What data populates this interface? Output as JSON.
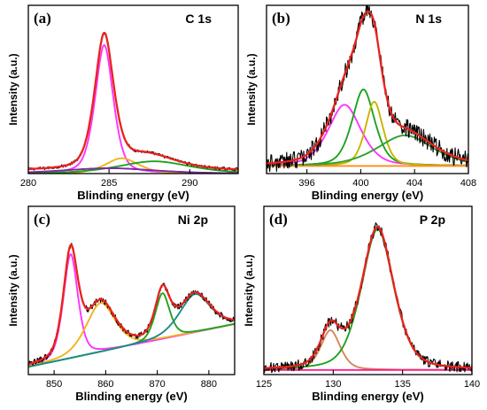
{
  "chart_data": [
    {
      "type": "line",
      "panel": "(a)",
      "title": "C 1s",
      "xlabel": "Blinding energy (eV)",
      "ylabel": "Intensity (a.u.)",
      "xlim": [
        280,
        293
      ],
      "ylim": [
        0,
        1.1
      ],
      "xticks": [
        280,
        285,
        290
      ],
      "series": [
        {
          "color": "#000000",
          "kind": "raw",
          "peaks": [
            [
              284.7,
              0.86,
              0.62
            ],
            [
              287.3,
              0.1,
              2.0
            ]
          ],
          "baseline": [
            0.02,
            0.02
          ],
          "noise": 0.01
        },
        {
          "color": "#e8231c",
          "kind": "fit",
          "peaks": [
            [
              284.7,
              0.86,
              0.62
            ],
            [
              287.3,
              0.1,
              2.0
            ]
          ],
          "baseline": [
            0.02,
            0.02
          ]
        },
        {
          "color": "#ff33ff",
          "kind": "component",
          "peaks": [
            [
              284.7,
              0.84,
              0.6
            ]
          ],
          "baseline": [
            0,
            0
          ]
        },
        {
          "color": "#f0b41e",
          "kind": "component",
          "peaks": [
            [
              285.8,
              0.1,
              1.1
            ]
          ],
          "baseline": [
            0,
            0
          ]
        },
        {
          "color": "#1fa21f",
          "kind": "component",
          "peaks": [
            [
              287.8,
              0.08,
              2.4
            ]
          ],
          "baseline": [
            0,
            0
          ]
        },
        {
          "color": "#7a2ba0",
          "kind": "component",
          "peaks": [
            [
              285.0,
              0.035,
              3.0
            ]
          ],
          "baseline": [
            0,
            0
          ]
        }
      ]
    },
    {
      "type": "line",
      "panel": "(b)",
      "title": "N 1s",
      "xlabel": "Blinding energy (eV)",
      "ylabel": "Intensity (a.u.)",
      "xlim": [
        393,
        408
      ],
      "ylim": [
        0,
        1.1
      ],
      "xticks": [
        396,
        400,
        404,
        408
      ],
      "series": [
        {
          "color": "#000000",
          "kind": "raw",
          "peaks": [
            [
              398.8,
              0.4,
              1.3
            ],
            [
              400.2,
              0.5,
              0.9
            ],
            [
              401.0,
              0.42,
              0.7
            ],
            [
              403.3,
              0.2,
              2.2
            ]
          ],
          "baseline": [
            0.05,
            0.05
          ],
          "noise": 0.06
        },
        {
          "color": "#e8231c",
          "kind": "fit",
          "peaks": [
            [
              398.8,
              0.4,
              1.3
            ],
            [
              400.2,
              0.5,
              0.9
            ],
            [
              401.0,
              0.42,
              0.7
            ],
            [
              403.3,
              0.2,
              2.2
            ]
          ],
          "baseline": [
            0.05,
            0.05
          ]
        },
        {
          "color": "#ff33ff",
          "kind": "component",
          "peaks": [
            [
              398.8,
              0.4,
              1.3
            ]
          ],
          "baseline": [
            0.05,
            0.05
          ]
        },
        {
          "color": "#1fa21f",
          "kind": "component",
          "peaks": [
            [
              400.2,
              0.5,
              0.9
            ]
          ],
          "baseline": [
            0.05,
            0.05
          ]
        },
        {
          "color": "#c8b400",
          "kind": "component",
          "peaks": [
            [
              401.0,
              0.42,
              0.7
            ]
          ],
          "baseline": [
            0.05,
            0.05
          ]
        },
        {
          "color": "#2ea02e",
          "kind": "component",
          "peaks": [
            [
              403.3,
              0.2,
              2.2
            ]
          ],
          "baseline": [
            0.05,
            0.05
          ]
        },
        {
          "color": "#ff8c1a",
          "kind": "component",
          "peaks": [],
          "baseline": [
            0.05,
            0.05
          ]
        }
      ]
    },
    {
      "type": "line",
      "panel": "(c)",
      "title": "Ni 2p",
      "xlabel": "Blinding energy (eV)",
      "ylabel": "Intensity (a.u.)",
      "xlim": [
        845,
        885
      ],
      "ylim": [
        0,
        1.1
      ],
      "xticks": [
        850,
        860,
        870,
        880
      ],
      "series": [
        {
          "color": "#000000",
          "kind": "raw",
          "peaks": [
            [
              853.2,
              0.68,
              1.5
            ],
            [
              859.0,
              0.32,
              3.0
            ],
            [
              871.0,
              0.3,
              1.5
            ],
            [
              877.3,
              0.25,
              3.2
            ]
          ],
          "baseline": [
            0.05,
            0.33
          ],
          "noise": 0.02
        },
        {
          "color": "#e8231c",
          "kind": "fit",
          "peaks": [
            [
              853.2,
              0.68,
              1.5
            ],
            [
              859.0,
              0.32,
              3.0
            ],
            [
              871.0,
              0.3,
              1.5
            ],
            [
              877.3,
              0.25,
              3.2
            ]
          ],
          "baseline": [
            0.05,
            0.33
          ]
        },
        {
          "color": "#ff33ff",
          "kind": "component",
          "peaks": [
            [
              853.2,
              0.68,
              1.5
            ]
          ],
          "baseline": [
            0.05,
            0.33
          ]
        },
        {
          "color": "#f0b41e",
          "kind": "component",
          "peaks": [
            [
              859.0,
              0.32,
              3.0
            ]
          ],
          "baseline": [
            0.05,
            0.33
          ]
        },
        {
          "color": "#1fa21f",
          "kind": "component",
          "peaks": [
            [
              871.0,
              0.3,
              1.5
            ]
          ],
          "baseline": [
            0.05,
            0.33
          ]
        },
        {
          "color": "#1f8a8a",
          "kind": "component",
          "peaks": [
            [
              877.3,
              0.25,
              3.2
            ]
          ],
          "baseline": [
            0.05,
            0.33
          ]
        }
      ]
    },
    {
      "type": "line",
      "panel": "(d)",
      "title": "P 2p",
      "xlabel": "Blinding energy (eV)",
      "ylabel": "Intensity (a.u.)",
      "xlim": [
        125,
        140
      ],
      "ylim": [
        0,
        1.1
      ],
      "xticks": [
        125,
        130,
        135,
        140
      ],
      "series": [
        {
          "color": "#000000",
          "kind": "raw",
          "peaks": [
            [
              129.8,
              0.26,
              0.75
            ],
            [
              133.2,
              0.93,
              1.25
            ]
          ],
          "baseline": [
            0.03,
            0.03
          ],
          "noise": 0.035
        },
        {
          "color": "#e8231c",
          "kind": "fit",
          "peaks": [
            [
              129.8,
              0.26,
              0.75
            ],
            [
              133.2,
              0.93,
              1.25
            ]
          ],
          "baseline": [
            0.03,
            0.03
          ]
        },
        {
          "color": "#d2875a",
          "kind": "component",
          "peaks": [
            [
              129.8,
              0.26,
              0.75
            ]
          ],
          "baseline": [
            0.03,
            0.03
          ]
        },
        {
          "color": "#1fa21f",
          "kind": "component",
          "peaks": [
            [
              133.2,
              0.92,
              1.25
            ]
          ],
          "baseline": [
            0.03,
            0.03
          ]
        },
        {
          "color": "#ff1a8c",
          "kind": "component",
          "peaks": [],
          "baseline": [
            0.03,
            0.03
          ]
        }
      ]
    }
  ]
}
